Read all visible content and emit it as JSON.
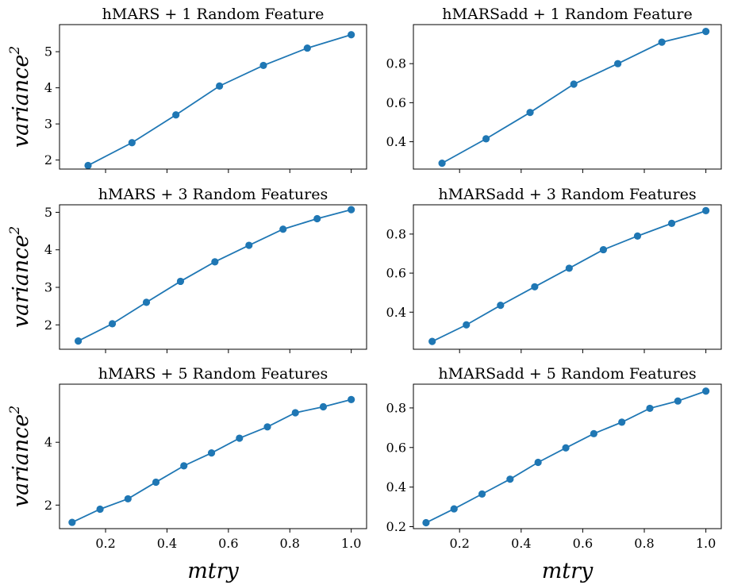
{
  "chart_data": [
    {
      "type": "line",
      "title": "hMARS + 1 Random Feature",
      "ylabel": "variance",
      "ylabel_sup": "2",
      "xlabel": "",
      "xlim": [
        0.05,
        1.05
      ],
      "ylim": [
        1.75,
        5.75
      ],
      "yticks": [
        2,
        3,
        4,
        5
      ],
      "yticklabels": [
        "2",
        "3",
        "4",
        "5"
      ],
      "xticks": [
        0.2,
        0.4,
        0.6,
        0.8,
        1.0
      ],
      "xticklabels": [
        "",
        "",
        "",
        "",
        ""
      ],
      "color": "#1f77b4",
      "x": [
        0.143,
        0.286,
        0.429,
        0.571,
        0.714,
        0.857,
        1.0
      ],
      "y": [
        1.85,
        2.48,
        3.25,
        4.05,
        4.62,
        5.1,
        5.47
      ]
    },
    {
      "type": "line",
      "title": "hMARSadd + 1 Random Feature",
      "ylabel": "",
      "ylabel_sup": "",
      "xlabel": "",
      "xlim": [
        0.05,
        1.05
      ],
      "ylim": [
        0.26,
        1.0
      ],
      "yticks": [
        0.4,
        0.6,
        0.8
      ],
      "yticklabels": [
        "0.4",
        "0.6",
        "0.8"
      ],
      "xticks": [
        0.2,
        0.4,
        0.6,
        0.8,
        1.0
      ],
      "xticklabels": [
        "",
        "",
        "",
        "",
        ""
      ],
      "color": "#1f77b4",
      "x": [
        0.143,
        0.286,
        0.429,
        0.571,
        0.714,
        0.857,
        1.0
      ],
      "y": [
        0.29,
        0.415,
        0.55,
        0.695,
        0.8,
        0.91,
        0.965
      ]
    },
    {
      "type": "line",
      "title": "hMARS + 3 Random Features",
      "ylabel": "variance",
      "ylabel_sup": "2",
      "xlabel": "",
      "xlim": [
        0.05,
        1.05
      ],
      "ylim": [
        1.35,
        5.2
      ],
      "yticks": [
        2,
        3,
        4,
        5
      ],
      "yticklabels": [
        "2",
        "3",
        "4",
        "5"
      ],
      "xticks": [
        0.2,
        0.4,
        0.6,
        0.8,
        1.0
      ],
      "xticklabels": [
        "",
        "",
        "",
        "",
        ""
      ],
      "color": "#1f77b4",
      "x": [
        0.111,
        0.222,
        0.333,
        0.444,
        0.556,
        0.667,
        0.778,
        0.889,
        1.0
      ],
      "y": [
        1.57,
        2.03,
        2.6,
        3.16,
        3.68,
        4.12,
        4.55,
        4.83,
        5.07
      ]
    },
    {
      "type": "line",
      "title": "hMARSadd + 3 Random Features",
      "ylabel": "",
      "ylabel_sup": "",
      "xlabel": "",
      "xlim": [
        0.05,
        1.05
      ],
      "ylim": [
        0.21,
        0.95
      ],
      "yticks": [
        0.4,
        0.6,
        0.8
      ],
      "yticklabels": [
        "0.4",
        "0.6",
        "0.8"
      ],
      "xticks": [
        0.2,
        0.4,
        0.6,
        0.8,
        1.0
      ],
      "xticklabels": [
        "",
        "",
        "",
        "",
        ""
      ],
      "color": "#1f77b4",
      "x": [
        0.111,
        0.222,
        0.333,
        0.444,
        0.556,
        0.667,
        0.778,
        0.889,
        1.0
      ],
      "y": [
        0.25,
        0.335,
        0.435,
        0.53,
        0.625,
        0.72,
        0.79,
        0.855,
        0.92
      ]
    },
    {
      "type": "line",
      "title": "hMARS + 5 Random Features",
      "ylabel": "variance",
      "ylabel_sup": "2",
      "xlabel": "mtry",
      "xlim": [
        0.05,
        1.05
      ],
      "ylim": [
        1.25,
        5.85
      ],
      "yticks": [
        2,
        4
      ],
      "yticklabels": [
        "2",
        "4"
      ],
      "xticks": [
        0.2,
        0.4,
        0.6,
        0.8,
        1.0
      ],
      "xticklabels": [
        "0.2",
        "0.4",
        "0.6",
        "0.8",
        "1.0"
      ],
      "color": "#1f77b4",
      "x": [
        0.091,
        0.182,
        0.273,
        0.364,
        0.455,
        0.545,
        0.636,
        0.727,
        0.818,
        0.909,
        1.0
      ],
      "y": [
        1.45,
        1.87,
        2.2,
        2.73,
        3.25,
        3.66,
        4.13,
        4.49,
        4.94,
        5.13,
        5.36
      ]
    },
    {
      "type": "line",
      "title": "hMARSadd + 5 Random Features",
      "ylabel": "",
      "ylabel_sup": "",
      "xlabel": "mtry",
      "xlim": [
        0.05,
        1.05
      ],
      "ylim": [
        0.19,
        0.92
      ],
      "yticks": [
        0.2,
        0.4,
        0.6,
        0.8
      ],
      "yticklabels": [
        "0.2",
        "0.4",
        "0.6",
        "0.8"
      ],
      "xticks": [
        0.2,
        0.4,
        0.6,
        0.8,
        1.0
      ],
      "xticklabels": [
        "0.2",
        "0.4",
        "0.6",
        "0.8",
        "1.0"
      ],
      "color": "#1f77b4",
      "x": [
        0.091,
        0.182,
        0.273,
        0.364,
        0.455,
        0.545,
        0.636,
        0.727,
        0.818,
        0.909,
        1.0
      ],
      "y": [
        0.22,
        0.29,
        0.365,
        0.44,
        0.525,
        0.598,
        0.67,
        0.728,
        0.798,
        0.835,
        0.885
      ]
    }
  ]
}
